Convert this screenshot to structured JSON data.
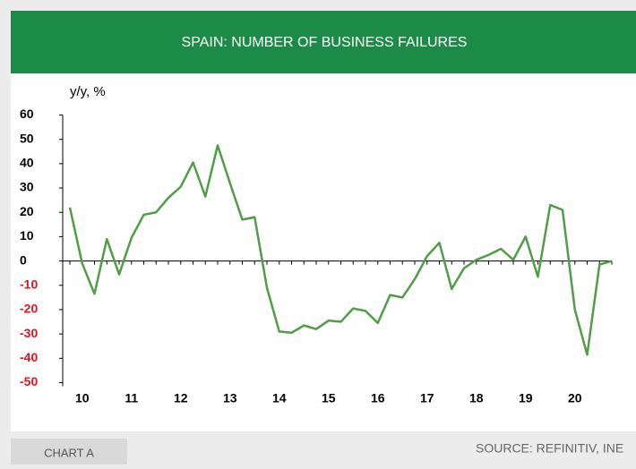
{
  "chart_data": {
    "type": "line",
    "title": "SPAIN: NUMBER OF BUSINESS FAILURES",
    "y_label": "y/y, %",
    "categories": [
      null,
      "10",
      null,
      null,
      null,
      "11",
      null,
      null,
      null,
      "12",
      null,
      null,
      null,
      "13",
      null,
      null,
      null,
      "14",
      null,
      null,
      null,
      "15",
      null,
      null,
      null,
      "16",
      null,
      null,
      null,
      "17",
      null,
      null,
      null,
      "18",
      null,
      null,
      null,
      "19",
      null,
      null,
      null,
      "20",
      null,
      null,
      null
    ],
    "series": [
      {
        "name": "Business failures",
        "color": "#4f9e45",
        "values": [
          22,
          -1,
          -13.5,
          9,
          -5.5,
          9.5,
          19,
          20,
          26,
          30.5,
          40.5,
          26.5,
          47.5,
          32,
          17,
          18,
          -11,
          -29,
          -29.5,
          -26.5,
          -28,
          -24.5,
          -25,
          -19.5,
          -20.5,
          -25.5,
          -14,
          -15,
          -7.5,
          2,
          7.5,
          -11.5,
          -3,
          0.5,
          2.5,
          5,
          0.5,
          10,
          -6.5,
          23,
          21,
          -20,
          -38.5,
          -1.5,
          0
        ]
      }
    ],
    "ylim": [
      -50,
      60
    ],
    "yticks": [
      -50,
      -40,
      -30,
      -20,
      -10,
      0,
      10,
      20,
      30,
      40,
      50,
      60
    ],
    "negative_tick_color": "#e8111d",
    "header_color": "#1b8b47"
  },
  "footer": {
    "label": "CHART A",
    "source": "SOURCE: REFINITIV, INE"
  }
}
